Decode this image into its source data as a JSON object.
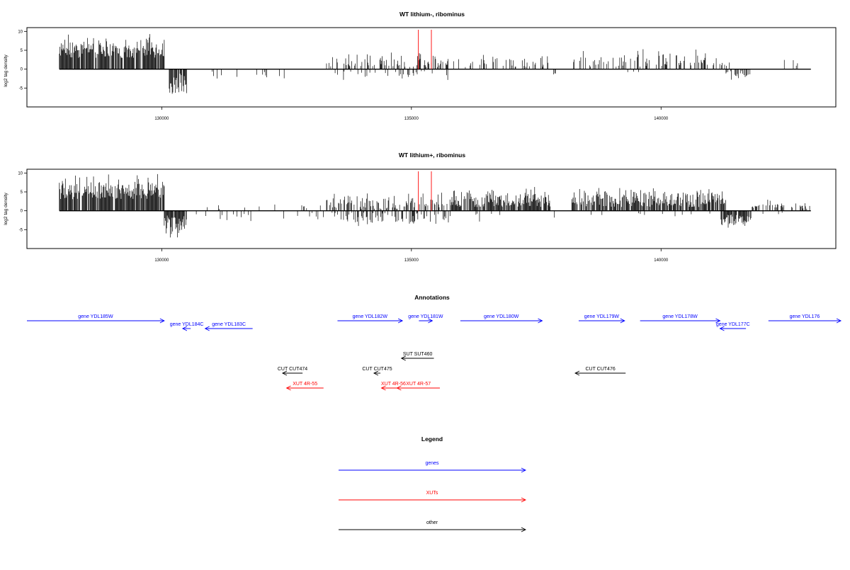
{
  "chart_data": [
    {
      "type": "bar",
      "title": "WT lithium-, ribominus",
      "ylabel": "log2 tag density",
      "xlabel": "",
      "xlim": [
        127300,
        143500
      ],
      "ylim": [
        -10,
        11
      ],
      "x_ticks": [
        130000,
        135000,
        140000
      ],
      "x_tick_labels": [
        "130000",
        "135000",
        "140000"
      ],
      "y_ticks": [
        -5,
        0,
        5,
        10
      ],
      "y_tick_labels": [
        "-5",
        "0",
        "5",
        "10"
      ],
      "markers": [
        {
          "x": 135140,
          "color": "#ff0000"
        },
        {
          "x": 135400,
          "color": "#ff0000"
        }
      ],
      "segments": [
        {
          "start": 127950,
          "end": 130050,
          "sign": 1,
          "lo": 3,
          "hi": 9.3,
          "density": 0.9
        },
        {
          "start": 130150,
          "end": 130500,
          "sign": -1,
          "lo": 1,
          "hi": 9,
          "density": 0.9
        },
        {
          "start": 130700,
          "end": 132600,
          "sign": -1,
          "lo": 0.5,
          "hi": 3.5,
          "density": 0.05
        },
        {
          "start": 133300,
          "end": 135850,
          "sign": 1,
          "lo": 0.5,
          "hi": 4.5,
          "density": 0.3
        },
        {
          "start": 133400,
          "end": 135800,
          "sign": -1,
          "lo": 0.5,
          "hi": 3.5,
          "density": 0.12
        },
        {
          "start": 135900,
          "end": 137800,
          "sign": 1,
          "lo": 0.5,
          "hi": 4.5,
          "density": 0.25
        },
        {
          "start": 137800,
          "end": 137900,
          "sign": -1,
          "lo": 1,
          "hi": 3.5,
          "density": 0.5
        },
        {
          "start": 138200,
          "end": 141400,
          "sign": 1,
          "lo": 0.5,
          "hi": 6,
          "density": 0.3
        },
        {
          "start": 138900,
          "end": 139800,
          "sign": -1,
          "lo": 0.5,
          "hi": 2,
          "density": 0.05
        },
        {
          "start": 141300,
          "end": 141800,
          "sign": -1,
          "lo": 0.5,
          "hi": 3.5,
          "density": 0.5
        },
        {
          "start": 142300,
          "end": 143000,
          "sign": 1,
          "lo": 0.5,
          "hi": 2.8,
          "density": 0.05
        }
      ]
    },
    {
      "type": "bar",
      "title": "WT lithium+, ribominus",
      "ylabel": "log2 tag density",
      "xlabel": "",
      "xlim": [
        127300,
        143500
      ],
      "ylim": [
        -10,
        11
      ],
      "x_ticks": [
        130000,
        135000,
        140000
      ],
      "x_tick_labels": [
        "130000",
        "135000",
        "140000"
      ],
      "y_ticks": [
        -5,
        0,
        5,
        10
      ],
      "y_tick_labels": [
        "-5",
        "0",
        "5",
        "10"
      ],
      "markers": [
        {
          "x": 135140,
          "color": "#ff0000"
        },
        {
          "x": 135400,
          "color": "#ff0000"
        }
      ],
      "segments": [
        {
          "start": 127950,
          "end": 130050,
          "sign": 1,
          "lo": 3,
          "hi": 10.5,
          "density": 0.9
        },
        {
          "start": 130050,
          "end": 130500,
          "sign": -1,
          "lo": 1,
          "hi": 9,
          "density": 0.9
        },
        {
          "start": 130500,
          "end": 133300,
          "sign": -1,
          "lo": 0.5,
          "hi": 3.5,
          "density": 0.12
        },
        {
          "start": 130800,
          "end": 133300,
          "sign": 1,
          "lo": 0.5,
          "hi": 2,
          "density": 0.05
        },
        {
          "start": 133300,
          "end": 135800,
          "sign": 1,
          "lo": 0.5,
          "hi": 5.5,
          "density": 0.45
        },
        {
          "start": 133400,
          "end": 135800,
          "sign": -1,
          "lo": 0.5,
          "hi": 4.5,
          "density": 0.25
        },
        {
          "start": 135800,
          "end": 137800,
          "sign": 1,
          "lo": 1,
          "hi": 6.5,
          "density": 0.8
        },
        {
          "start": 135800,
          "end": 137900,
          "sign": -1,
          "lo": 0.5,
          "hi": 3.5,
          "density": 0.06
        },
        {
          "start": 138200,
          "end": 141300,
          "sign": 1,
          "lo": 1,
          "hi": 6.5,
          "density": 0.75
        },
        {
          "start": 138300,
          "end": 141000,
          "sign": -1,
          "lo": 0.5,
          "hi": 1.5,
          "density": 0.05
        },
        {
          "start": 141200,
          "end": 141800,
          "sign": -1,
          "lo": 1,
          "hi": 5,
          "density": 0.85
        },
        {
          "start": 141800,
          "end": 143000,
          "sign": 1,
          "lo": 0.5,
          "hi": 3,
          "density": 0.4
        },
        {
          "start": 141800,
          "end": 142500,
          "sign": -1,
          "lo": 0.5,
          "hi": 1.5,
          "density": 0.05
        }
      ]
    }
  ],
  "annotations": {
    "title": "Annotations",
    "colors": {
      "gene": "#0000ff",
      "xut": "#ff0000",
      "other": "#000000"
    },
    "items": [
      {
        "label": "gene YDL185W",
        "kind": "gene",
        "row": 0,
        "start": 127300,
        "end": 130050,
        "dir": "+"
      },
      {
        "label": "gene YDL184C",
        "kind": "gene",
        "row": 1,
        "start": 130420,
        "end": 130580,
        "dir": "-"
      },
      {
        "label": "gene YDL183C",
        "kind": "gene",
        "row": 1,
        "start": 130870,
        "end": 131820,
        "dir": "-"
      },
      {
        "label": "gene YDL182W",
        "kind": "gene",
        "row": 0,
        "start": 133520,
        "end": 134820,
        "dir": "+"
      },
      {
        "label": "gene YDL181W",
        "kind": "gene",
        "row": 0,
        "start": 135150,
        "end": 135420,
        "dir": "+"
      },
      {
        "label": "gene YDL180W",
        "kind": "gene",
        "row": 0,
        "start": 135980,
        "end": 137620,
        "dir": "+"
      },
      {
        "label": "gene YDL179W",
        "kind": "gene",
        "row": 0,
        "start": 138350,
        "end": 139270,
        "dir": "+"
      },
      {
        "label": "gene YDL178W",
        "kind": "gene",
        "row": 0,
        "start": 139580,
        "end": 141180,
        "dir": "+"
      },
      {
        "label": "gene YDL177C",
        "kind": "gene",
        "row": 1,
        "start": 141180,
        "end": 141700,
        "dir": "-"
      },
      {
        "label": "gene YDL176",
        "kind": "gene",
        "row": 0,
        "start": 142150,
        "end": 143600,
        "dir": "+"
      },
      {
        "label": "SUT SUT460",
        "kind": "other",
        "row": 2,
        "start": 134800,
        "end": 135450,
        "dir": "-"
      },
      {
        "label": "CUT CUT474",
        "kind": "other",
        "row": 3,
        "start": 132420,
        "end": 132820,
        "dir": "-"
      },
      {
        "label": "CUT CUT475",
        "kind": "other",
        "row": 3,
        "start": 134250,
        "end": 134380,
        "dir": "-"
      },
      {
        "label": "CUT CUT476",
        "kind": "other",
        "row": 3,
        "start": 138280,
        "end": 139290,
        "dir": "-"
      },
      {
        "label": "XUT 4R-55",
        "kind": "xut",
        "row": 4,
        "start": 132500,
        "end": 133240,
        "dir": "-"
      },
      {
        "label": "XUT 4R-56",
        "kind": "xut",
        "row": 4,
        "start": 134400,
        "end": 134880,
        "dir": "-"
      },
      {
        "label": "XUT 4R-57",
        "kind": "xut",
        "row": 4,
        "start": 134710,
        "end": 135570,
        "dir": "-"
      }
    ]
  },
  "legend": {
    "title": "Legend",
    "items": [
      {
        "label": "genes",
        "color": "#0000ff"
      },
      {
        "label": "XUTs",
        "color": "#ff0000"
      },
      {
        "label": "other",
        "color": "#000000"
      }
    ]
  }
}
